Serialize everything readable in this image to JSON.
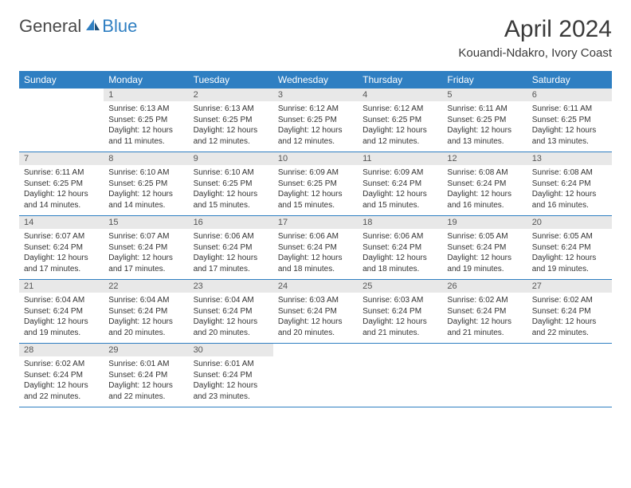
{
  "brand": {
    "part1": "General",
    "part2": "Blue",
    "brand_color": "#2f7fc2",
    "text_color": "#4a4a4a"
  },
  "title": "April 2024",
  "location": "Kouandi-Ndakro, Ivory Coast",
  "colors": {
    "header_bg": "#2f7fc2",
    "header_text": "#ffffff",
    "daynum_bg": "#e8e8e8",
    "row_divider": "#2f7fc2",
    "body_text": "#333333",
    "page_bg": "#ffffff"
  },
  "typography": {
    "title_fontsize": 30,
    "location_fontsize": 15,
    "weekday_fontsize": 12,
    "daynum_fontsize": 11,
    "detail_fontsize": 10
  },
  "weekdays": [
    "Sunday",
    "Monday",
    "Tuesday",
    "Wednesday",
    "Thursday",
    "Friday",
    "Saturday"
  ],
  "weeks": [
    {
      "nums": [
        "",
        "1",
        "2",
        "3",
        "4",
        "5",
        "6"
      ],
      "cells": [
        null,
        {
          "sunrise": "Sunrise: 6:13 AM",
          "sunset": "Sunset: 6:25 PM",
          "day1": "Daylight: 12 hours",
          "day2": "and 11 minutes."
        },
        {
          "sunrise": "Sunrise: 6:13 AM",
          "sunset": "Sunset: 6:25 PM",
          "day1": "Daylight: 12 hours",
          "day2": "and 12 minutes."
        },
        {
          "sunrise": "Sunrise: 6:12 AM",
          "sunset": "Sunset: 6:25 PM",
          "day1": "Daylight: 12 hours",
          "day2": "and 12 minutes."
        },
        {
          "sunrise": "Sunrise: 6:12 AM",
          "sunset": "Sunset: 6:25 PM",
          "day1": "Daylight: 12 hours",
          "day2": "and 12 minutes."
        },
        {
          "sunrise": "Sunrise: 6:11 AM",
          "sunset": "Sunset: 6:25 PM",
          "day1": "Daylight: 12 hours",
          "day2": "and 13 minutes."
        },
        {
          "sunrise": "Sunrise: 6:11 AM",
          "sunset": "Sunset: 6:25 PM",
          "day1": "Daylight: 12 hours",
          "day2": "and 13 minutes."
        }
      ]
    },
    {
      "nums": [
        "7",
        "8",
        "9",
        "10",
        "11",
        "12",
        "13"
      ],
      "cells": [
        {
          "sunrise": "Sunrise: 6:11 AM",
          "sunset": "Sunset: 6:25 PM",
          "day1": "Daylight: 12 hours",
          "day2": "and 14 minutes."
        },
        {
          "sunrise": "Sunrise: 6:10 AM",
          "sunset": "Sunset: 6:25 PM",
          "day1": "Daylight: 12 hours",
          "day2": "and 14 minutes."
        },
        {
          "sunrise": "Sunrise: 6:10 AM",
          "sunset": "Sunset: 6:25 PM",
          "day1": "Daylight: 12 hours",
          "day2": "and 15 minutes."
        },
        {
          "sunrise": "Sunrise: 6:09 AM",
          "sunset": "Sunset: 6:25 PM",
          "day1": "Daylight: 12 hours",
          "day2": "and 15 minutes."
        },
        {
          "sunrise": "Sunrise: 6:09 AM",
          "sunset": "Sunset: 6:24 PM",
          "day1": "Daylight: 12 hours",
          "day2": "and 15 minutes."
        },
        {
          "sunrise": "Sunrise: 6:08 AM",
          "sunset": "Sunset: 6:24 PM",
          "day1": "Daylight: 12 hours",
          "day2": "and 16 minutes."
        },
        {
          "sunrise": "Sunrise: 6:08 AM",
          "sunset": "Sunset: 6:24 PM",
          "day1": "Daylight: 12 hours",
          "day2": "and 16 minutes."
        }
      ]
    },
    {
      "nums": [
        "14",
        "15",
        "16",
        "17",
        "18",
        "19",
        "20"
      ],
      "cells": [
        {
          "sunrise": "Sunrise: 6:07 AM",
          "sunset": "Sunset: 6:24 PM",
          "day1": "Daylight: 12 hours",
          "day2": "and 17 minutes."
        },
        {
          "sunrise": "Sunrise: 6:07 AM",
          "sunset": "Sunset: 6:24 PM",
          "day1": "Daylight: 12 hours",
          "day2": "and 17 minutes."
        },
        {
          "sunrise": "Sunrise: 6:06 AM",
          "sunset": "Sunset: 6:24 PM",
          "day1": "Daylight: 12 hours",
          "day2": "and 17 minutes."
        },
        {
          "sunrise": "Sunrise: 6:06 AM",
          "sunset": "Sunset: 6:24 PM",
          "day1": "Daylight: 12 hours",
          "day2": "and 18 minutes."
        },
        {
          "sunrise": "Sunrise: 6:06 AM",
          "sunset": "Sunset: 6:24 PM",
          "day1": "Daylight: 12 hours",
          "day2": "and 18 minutes."
        },
        {
          "sunrise": "Sunrise: 6:05 AM",
          "sunset": "Sunset: 6:24 PM",
          "day1": "Daylight: 12 hours",
          "day2": "and 19 minutes."
        },
        {
          "sunrise": "Sunrise: 6:05 AM",
          "sunset": "Sunset: 6:24 PM",
          "day1": "Daylight: 12 hours",
          "day2": "and 19 minutes."
        }
      ]
    },
    {
      "nums": [
        "21",
        "22",
        "23",
        "24",
        "25",
        "26",
        "27"
      ],
      "cells": [
        {
          "sunrise": "Sunrise: 6:04 AM",
          "sunset": "Sunset: 6:24 PM",
          "day1": "Daylight: 12 hours",
          "day2": "and 19 minutes."
        },
        {
          "sunrise": "Sunrise: 6:04 AM",
          "sunset": "Sunset: 6:24 PM",
          "day1": "Daylight: 12 hours",
          "day2": "and 20 minutes."
        },
        {
          "sunrise": "Sunrise: 6:04 AM",
          "sunset": "Sunset: 6:24 PM",
          "day1": "Daylight: 12 hours",
          "day2": "and 20 minutes."
        },
        {
          "sunrise": "Sunrise: 6:03 AM",
          "sunset": "Sunset: 6:24 PM",
          "day1": "Daylight: 12 hours",
          "day2": "and 20 minutes."
        },
        {
          "sunrise": "Sunrise: 6:03 AM",
          "sunset": "Sunset: 6:24 PM",
          "day1": "Daylight: 12 hours",
          "day2": "and 21 minutes."
        },
        {
          "sunrise": "Sunrise: 6:02 AM",
          "sunset": "Sunset: 6:24 PM",
          "day1": "Daylight: 12 hours",
          "day2": "and 21 minutes."
        },
        {
          "sunrise": "Sunrise: 6:02 AM",
          "sunset": "Sunset: 6:24 PM",
          "day1": "Daylight: 12 hours",
          "day2": "and 22 minutes."
        }
      ]
    },
    {
      "nums": [
        "28",
        "29",
        "30",
        "",
        "",
        "",
        ""
      ],
      "cells": [
        {
          "sunrise": "Sunrise: 6:02 AM",
          "sunset": "Sunset: 6:24 PM",
          "day1": "Daylight: 12 hours",
          "day2": "and 22 minutes."
        },
        {
          "sunrise": "Sunrise: 6:01 AM",
          "sunset": "Sunset: 6:24 PM",
          "day1": "Daylight: 12 hours",
          "day2": "and 22 minutes."
        },
        {
          "sunrise": "Sunrise: 6:01 AM",
          "sunset": "Sunset: 6:24 PM",
          "day1": "Daylight: 12 hours",
          "day2": "and 23 minutes."
        },
        null,
        null,
        null,
        null
      ]
    }
  ]
}
